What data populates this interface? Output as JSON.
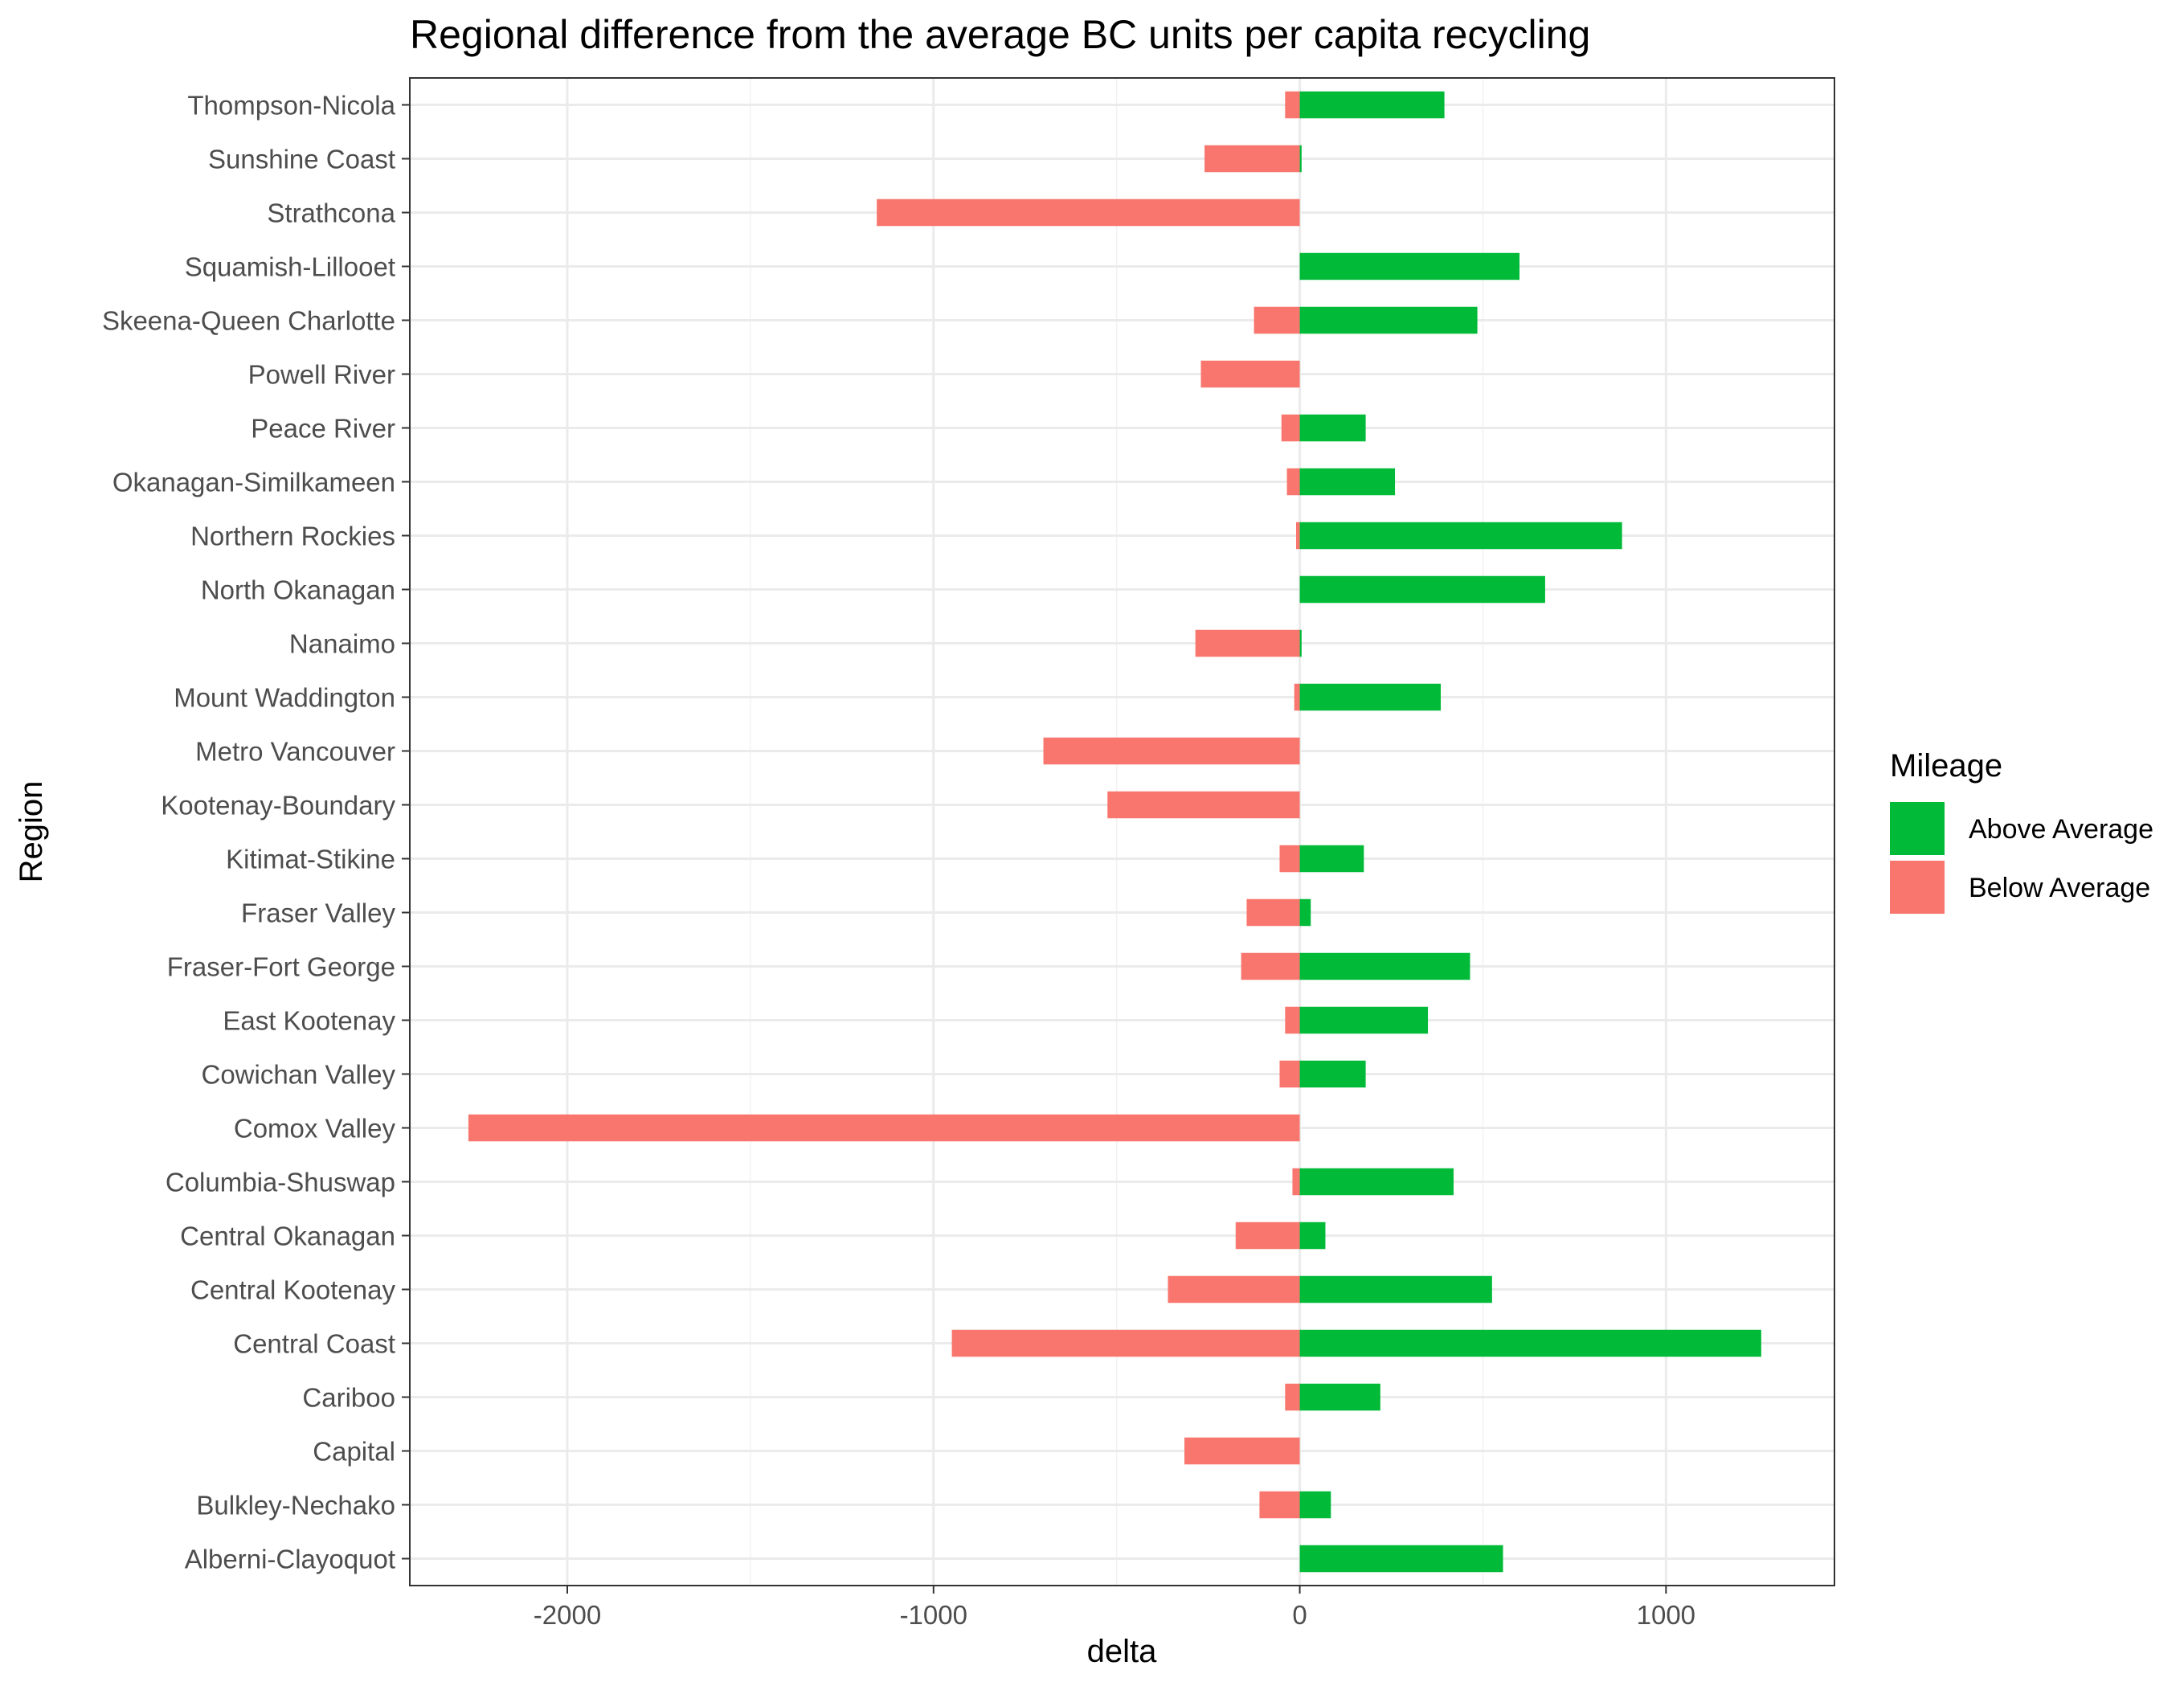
{
  "chart_data": {
    "type": "bar",
    "orientation": "horizontal",
    "stacked": false,
    "title": "Regional difference from the average BC units per capita recycling",
    "xlabel": "delta",
    "ylabel": "Region",
    "xlim": [
      -2430,
      1460
    ],
    "xticks": [
      -2000,
      -1000,
      0,
      1000
    ],
    "xtick_labels": [
      "-2000",
      "-1000",
      "0",
      "1000"
    ],
    "grid": true,
    "legend_position": "right",
    "legend_title": "Mileage",
    "categories": [
      "Alberni-Clayoquot",
      "Bulkley-Nechako",
      "Capital",
      "Cariboo",
      "Central Coast",
      "Central Kootenay",
      "Central Okanagan",
      "Columbia-Shuswap",
      "Comox Valley",
      "Cowichan Valley",
      "East Kootenay",
      "Fraser-Fort George",
      "Fraser Valley",
      "Kitimat-Stikine",
      "Kootenay-Boundary",
      "Metro Vancouver",
      "Mount Waddington",
      "Nanaimo",
      "North Okanagan",
      "Northern Rockies",
      "Okanagan-Similkameen",
      "Peace River",
      "Powell River",
      "Skeena-Queen Charlotte",
      "Squamish-Lillooet",
      "Strathcona",
      "Sunshine Coast",
      "Thompson-Nicola"
    ],
    "series": [
      {
        "name": "Above Average",
        "color": "#00ba38",
        "values": [
          555,
          85,
          0,
          220,
          1260,
          525,
          70,
          420,
          0,
          180,
          350,
          465,
          30,
          175,
          0,
          0,
          385,
          5,
          670,
          880,
          260,
          180,
          0,
          485,
          600,
          0,
          5,
          395
        ]
      },
      {
        "name": "Below Average",
        "color": "#f8766d",
        "values": [
          0,
          -110,
          -315,
          -40,
          -950,
          -360,
          -175,
          -20,
          -2270,
          -55,
          -40,
          -160,
          -145,
          -55,
          -525,
          -700,
          -15,
          -285,
          0,
          -10,
          -35,
          -50,
          -270,
          -125,
          0,
          -1155,
          -260,
          -40
        ]
      }
    ]
  }
}
